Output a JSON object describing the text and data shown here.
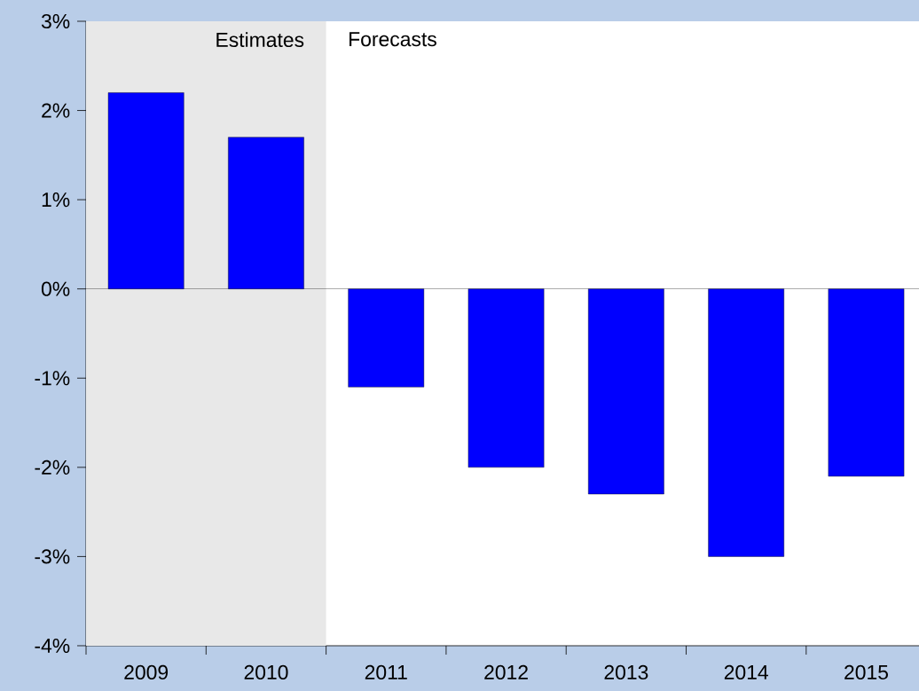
{
  "chart_data": {
    "type": "bar",
    "categories": [
      "2009",
      "2010",
      "2011",
      "2012",
      "2013",
      "2014",
      "2015"
    ],
    "values": [
      2.2,
      1.7,
      -1.1,
      -2.0,
      -2.3,
      -3.0,
      -2.1
    ],
    "color": "#0000ff",
    "ylim": [
      -4,
      3
    ],
    "yticks": [
      {
        "value": -4,
        "label": "-4%"
      },
      {
        "value": -3,
        "label": "-3%"
      },
      {
        "value": -2,
        "label": "-2%"
      },
      {
        "value": -1,
        "label": "-1%"
      },
      {
        "value": 0,
        "label": "0%"
      },
      {
        "value": 1,
        "label": "1%"
      },
      {
        "value": 2,
        "label": "2%"
      },
      {
        "value": 3,
        "label": "3%"
      }
    ],
    "bands": [
      {
        "axis": "x",
        "from": "2009",
        "to": "2010",
        "label": "Estimates",
        "color": "#e8e8e8"
      }
    ],
    "annotations": [
      "Forecasts"
    ]
  }
}
